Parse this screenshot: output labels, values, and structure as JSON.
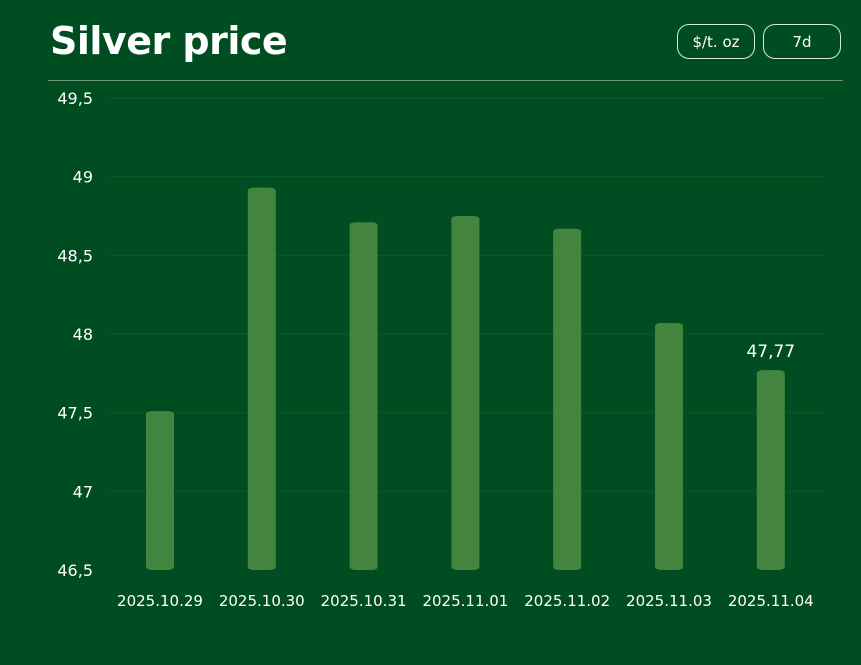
{
  "title": "Silver price",
  "controls": {
    "unit_label": "$/t. oz",
    "range_label": "7d"
  },
  "colors": {
    "background": "#004d22",
    "bar": "#43853f",
    "grid": "#0c5a2a",
    "text": "#ffffff"
  },
  "chart_data": {
    "type": "bar",
    "title": "Silver price",
    "xlabel": "",
    "ylabel": "",
    "categories": [
      "2025.10.29",
      "2025.10.30",
      "2025.10.31",
      "2025.11.01",
      "2025.11.02",
      "2025.11.03",
      "2025.11.04"
    ],
    "values": [
      47.51,
      48.93,
      48.71,
      48.75,
      48.67,
      48.07,
      47.77
    ],
    "ylim": [
      46.5,
      49.5
    ],
    "yticks": [
      46.5,
      47,
      47.5,
      48,
      48.5,
      49,
      49.5
    ],
    "ytick_labels": [
      "46,5",
      "47",
      "47,5",
      "48",
      "48,5",
      "49",
      "49,5"
    ],
    "data_labels": [
      {
        "category": "2025.11.04",
        "text": "47,77"
      }
    ],
    "grid": true,
    "legend": "none"
  }
}
